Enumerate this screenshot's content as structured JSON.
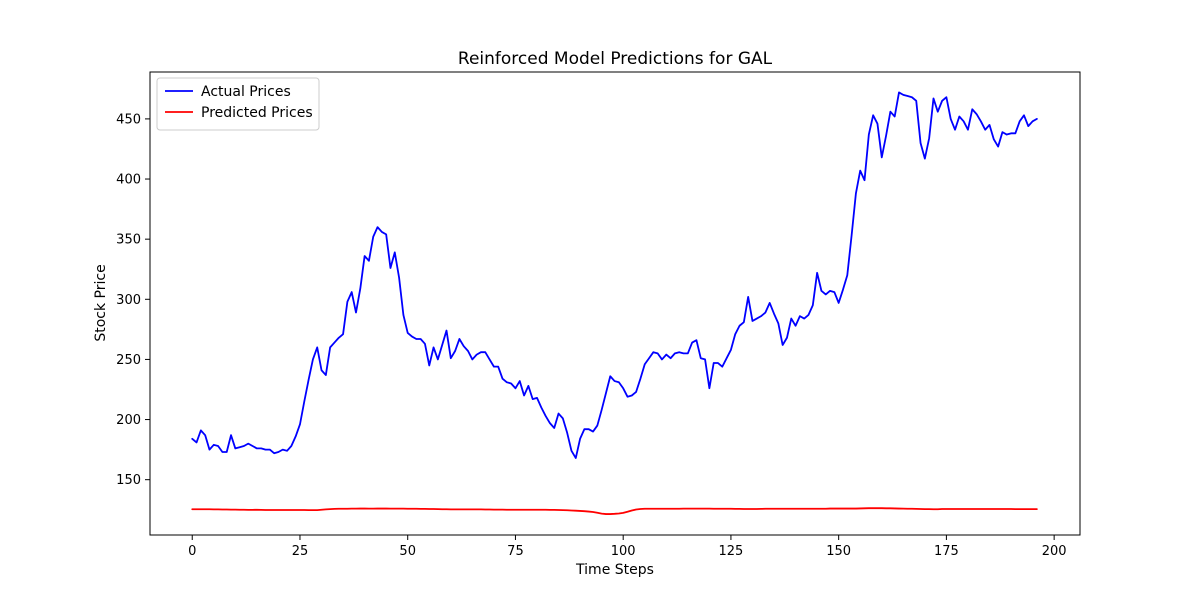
{
  "chart_data": {
    "type": "line",
    "title": "Reinforced Model Predictions for GAL",
    "xlabel": "Time Steps",
    "ylabel": "Stock Price",
    "xlim": [
      -9.8,
      206
    ],
    "ylim": [
      104,
      489
    ],
    "xticks": [
      0,
      25,
      50,
      75,
      100,
      125,
      150,
      175,
      200
    ],
    "yticks": [
      150,
      200,
      250,
      300,
      350,
      400,
      450
    ],
    "grid": false,
    "legend_position": "top-left",
    "series": [
      {
        "name": "Actual Prices",
        "color": "#0000ff",
        "values": [
          184,
          181,
          191,
          187,
          175,
          179,
          178,
          173,
          173,
          187,
          176,
          177,
          178,
          180,
          178,
          176,
          176,
          175,
          175,
          172,
          173,
          175,
          174,
          178,
          186,
          196,
          215,
          233,
          250,
          260,
          241,
          237,
          260,
          264,
          268,
          271,
          298,
          306,
          289,
          309,
          336,
          332,
          352,
          360,
          356,
          354,
          326,
          339,
          318,
          287,
          272,
          269,
          267,
          267,
          263,
          245,
          260,
          250,
          262,
          274,
          251,
          257,
          267,
          261,
          257,
          250,
          254,
          256,
          256,
          250,
          244,
          244,
          234,
          231,
          230,
          226,
          232,
          220,
          228,
          217,
          218,
          210,
          203,
          197,
          193,
          205,
          201,
          189,
          174,
          168,
          184,
          192,
          192,
          190,
          195,
          208,
          222,
          236,
          232,
          231,
          226,
          219,
          220,
          223,
          234,
          246,
          251,
          256,
          255,
          250,
          254,
          251,
          255,
          256,
          255,
          255,
          264,
          266,
          251,
          250,
          226,
          247,
          247,
          244,
          251,
          258,
          271,
          278,
          281,
          302,
          282,
          284,
          286,
          289,
          297,
          288,
          280,
          262,
          268,
          284,
          278,
          286,
          284,
          287,
          295,
          322,
          307,
          304,
          307,
          306,
          297,
          308,
          320,
          353,
          388,
          407,
          399,
          437,
          453,
          446,
          418,
          436,
          456,
          452,
          472,
          470,
          469,
          468,
          465,
          430,
          417,
          434,
          467,
          456,
          465,
          468,
          450,
          441,
          452,
          448,
          441,
          458,
          454,
          448,
          441,
          445,
          433,
          427,
          439,
          437,
          438,
          438,
          448,
          453,
          444,
          448,
          450
        ]
      },
      {
        "name": "Predicted Prices",
        "color": "#ff0000",
        "values": [
          125.4,
          125.4,
          125.4,
          125.4,
          125.4,
          125.3,
          125.3,
          125.2,
          125.2,
          125.1,
          125.1,
          125,
          125,
          124.9,
          124.9,
          125,
          124.9,
          124.8,
          124.8,
          124.8,
          124.8,
          124.8,
          124.8,
          124.8,
          124.8,
          124.8,
          124.8,
          124.7,
          124.7,
          124.7,
          125,
          125.3,
          125.5,
          125.7,
          125.8,
          125.8,
          125.8,
          125.9,
          125.9,
          126,
          126,
          125.9,
          125.9,
          126,
          126,
          126,
          125.9,
          125.9,
          125.9,
          125.9,
          125.8,
          125.8,
          125.8,
          125.7,
          125.7,
          125.6,
          125.6,
          125.5,
          125.4,
          125.4,
          125.3,
          125.3,
          125.3,
          125.3,
          125.3,
          125.3,
          125.3,
          125.3,
          125.2,
          125.2,
          125.1,
          125.1,
          125.1,
          125,
          125,
          125,
          125,
          125,
          125,
          125,
          125,
          125,
          125,
          124.9,
          124.9,
          124.8,
          124.7,
          124.6,
          124.4,
          124.2,
          124,
          123.8,
          123.5,
          123.1,
          122.5,
          121.8,
          121.4,
          121.4,
          121.6,
          121.9,
          122.4,
          123.3,
          124.4,
          125.2,
          125.6,
          125.8,
          125.8,
          125.8,
          125.8,
          125.8,
          125.8,
          125.8,
          125.8,
          125.8,
          125.9,
          125.9,
          125.9,
          125.9,
          125.9,
          125.9,
          125.9,
          125.8,
          125.8,
          125.8,
          125.8,
          125.8,
          125.7,
          125.7,
          125.6,
          125.6,
          125.6,
          125.6,
          125.7,
          125.8,
          125.8,
          125.8,
          125.8,
          125.8,
          125.8,
          125.8,
          125.8,
          125.8,
          125.8,
          125.8,
          125.8,
          125.8,
          125.8,
          125.8,
          126,
          126,
          126,
          126,
          126,
          126,
          126,
          126.1,
          126.2,
          126.3,
          126.3,
          126.3,
          126.3,
          126.2,
          126.2,
          126.1,
          126,
          125.9,
          125.8,
          125.8,
          125.7,
          125.6,
          125.5,
          125.5,
          125.4,
          125.4,
          125.6,
          125.6,
          125.6,
          125.6,
          125.6,
          125.6,
          125.6,
          125.6,
          125.6,
          125.6,
          125.6,
          125.6,
          125.6,
          125.6,
          125.6,
          125.6,
          125.6,
          125.5,
          125.5,
          125.5,
          125.5,
          125.5,
          125.5
        ]
      }
    ]
  }
}
